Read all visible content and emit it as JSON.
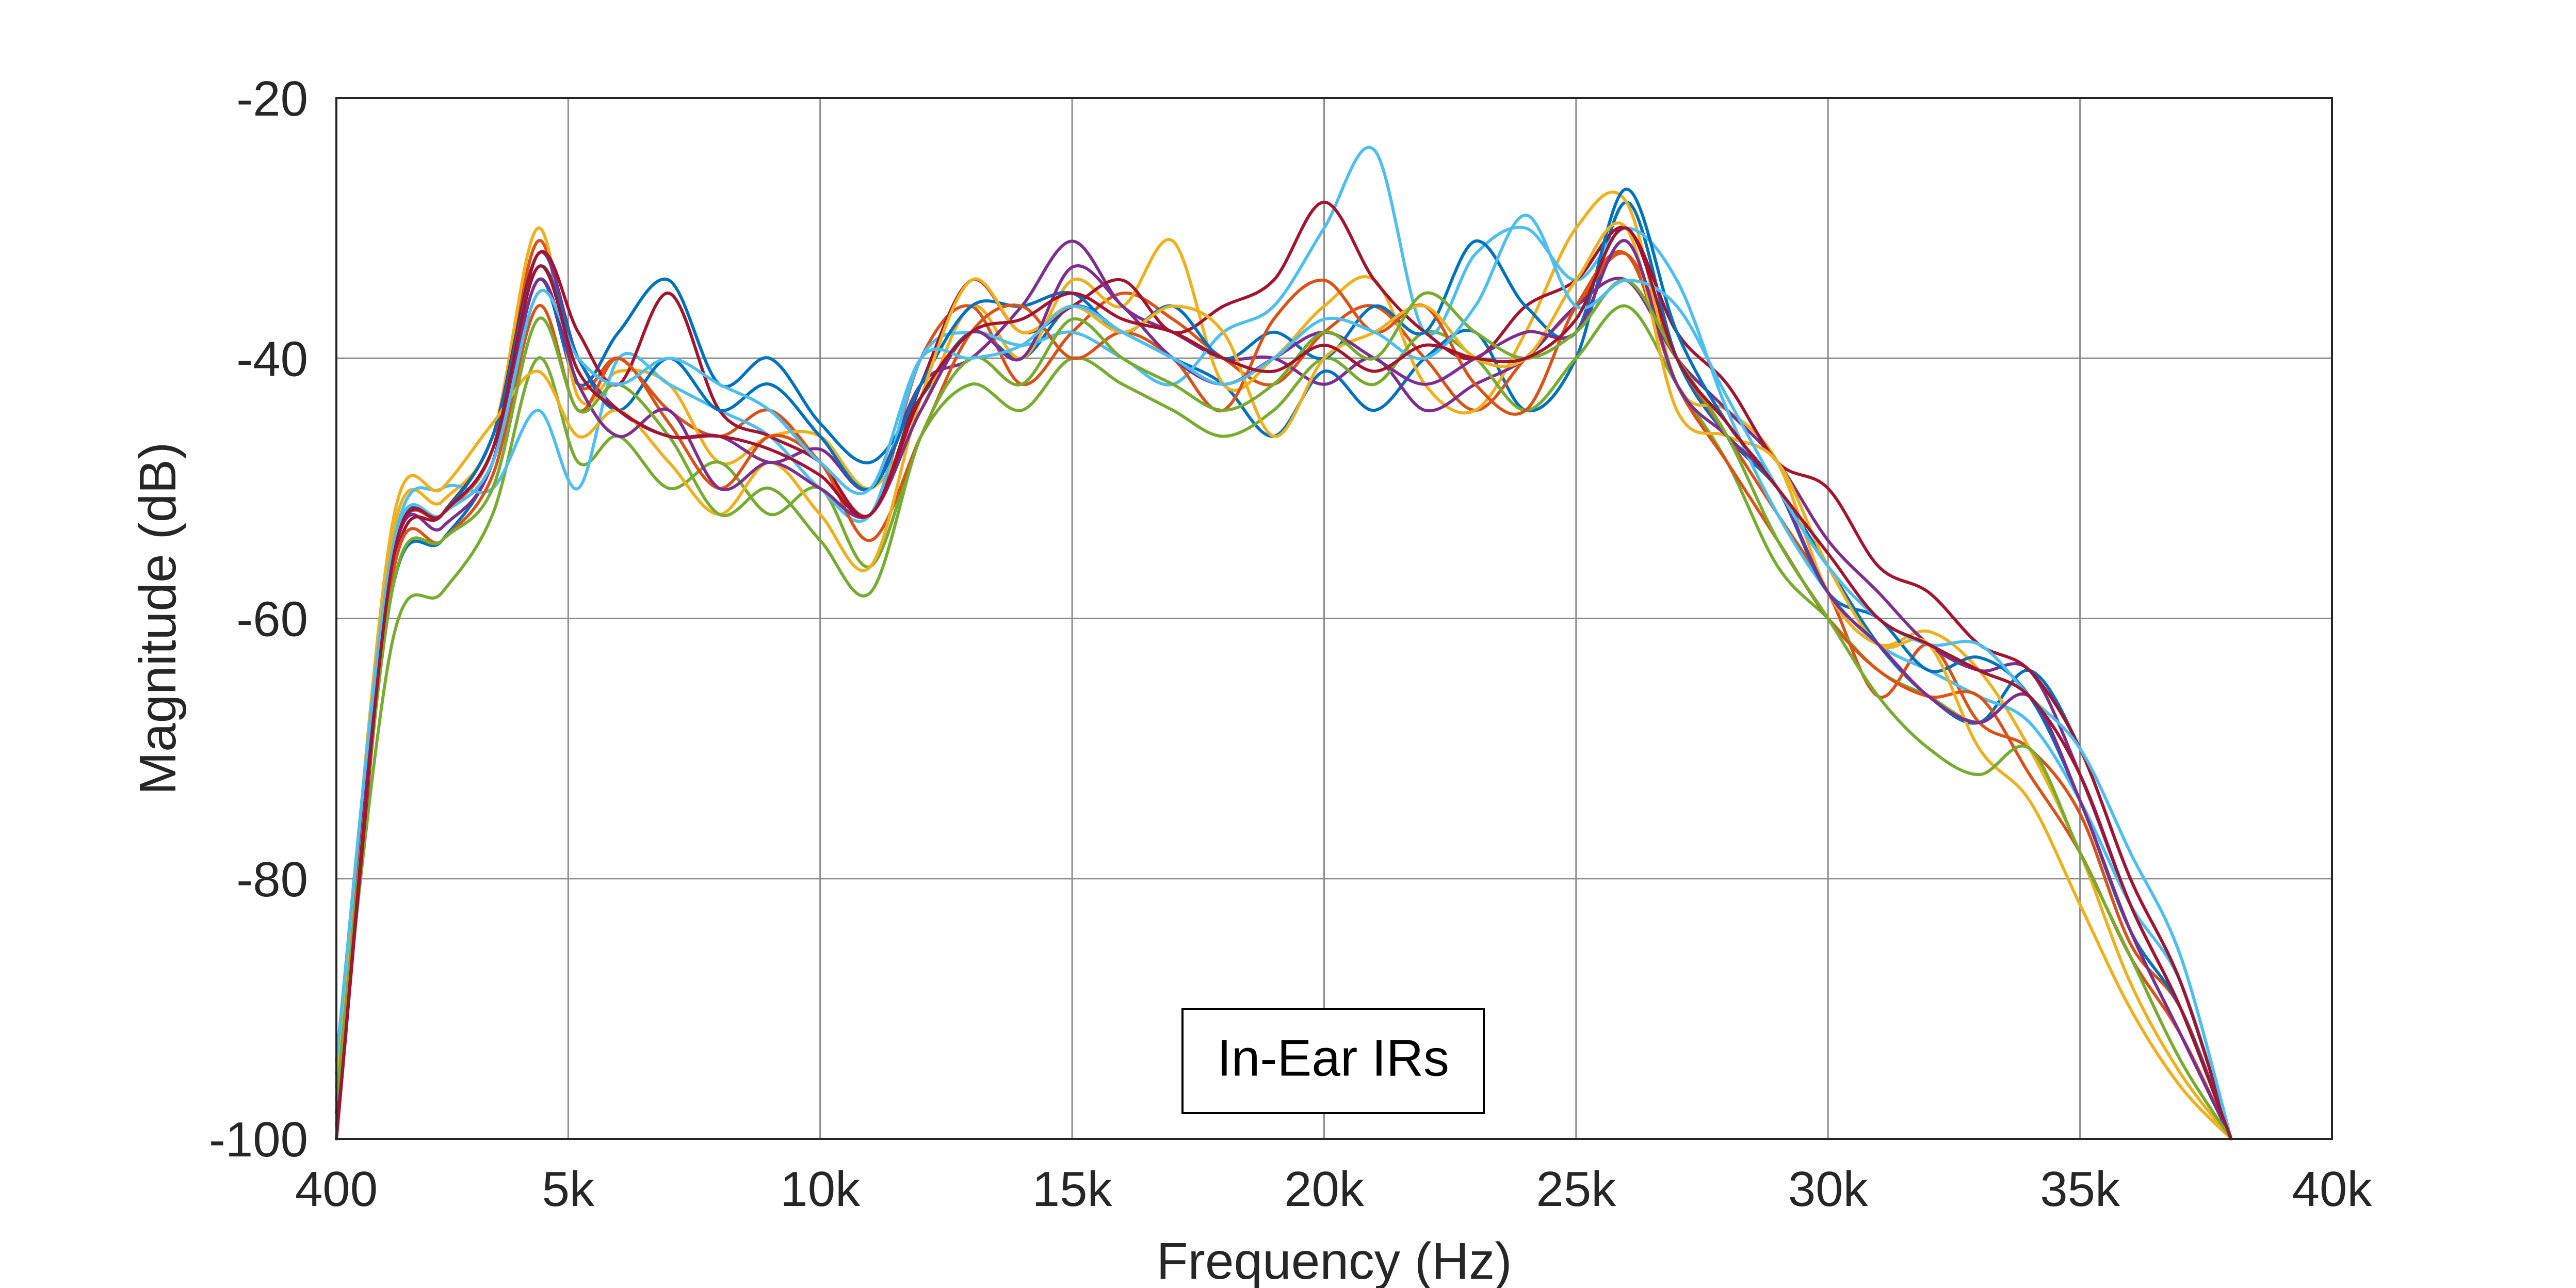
{
  "chart_data": {
    "type": "line",
    "title": "",
    "xlabel": "Frequency (Hz)",
    "ylabel": "Magnitude (dB)",
    "xlim": [
      400,
      40000
    ],
    "ylim": [
      -100,
      -20
    ],
    "x_ticks": [
      400,
      5000,
      10000,
      15000,
      20000,
      25000,
      30000,
      35000,
      40000
    ],
    "x_tick_labels": [
      "400",
      "5k",
      "10k",
      "15k",
      "20k",
      "25k",
      "30k",
      "35k",
      "40k"
    ],
    "y_ticks": [
      -20,
      -40,
      -60,
      -80,
      -100
    ],
    "y_tick_labels": [
      "-20",
      "-40",
      "-60",
      "-80",
      "-100"
    ],
    "grid": true,
    "legend": {
      "text": "In-Ear IRs",
      "placement": "bottom-center"
    },
    "x": [
      400,
      1500,
      2500,
      3500,
      4400,
      5200,
      6000,
      7000,
      8000,
      9000,
      10000,
      11000,
      12000,
      13000,
      14000,
      15000,
      16000,
      17000,
      18000,
      19000,
      20000,
      21000,
      22000,
      23000,
      24000,
      25000,
      26000,
      27000,
      28000,
      29000,
      30000,
      31000,
      32000,
      33000,
      34000,
      35000,
      36000,
      37000,
      38000
    ],
    "series": [
      {
        "color": "#0072BD",
        "values": [
          -95,
          -58,
          -54,
          -48,
          -34,
          -42,
          -38,
          -34,
          -42,
          -40,
          -45,
          -48,
          -43,
          -38,
          -40,
          -36,
          -38,
          -40,
          -42,
          -46,
          -41,
          -44,
          -40,
          -38,
          -44,
          -40,
          -28,
          -40,
          -46,
          -50,
          -56,
          -62,
          -66,
          -68,
          -64,
          -70,
          -80,
          -88,
          -100
        ]
      },
      {
        "color": "#D95319",
        "values": [
          -98,
          -56,
          -52,
          -47,
          -31,
          -42,
          -40,
          -44,
          -46,
          -44,
          -48,
          -52,
          -40,
          -36,
          -42,
          -38,
          -35,
          -37,
          -40,
          -42,
          -38,
          -36,
          -40,
          -44,
          -40,
          -36,
          -32,
          -40,
          -46,
          -52,
          -58,
          -66,
          -62,
          -68,
          -70,
          -75,
          -85,
          -90,
          -100
        ]
      },
      {
        "color": "#EDB120",
        "values": [
          -96,
          -54,
          -51,
          -46,
          -30,
          -43,
          -41,
          -42,
          -48,
          -46,
          -46,
          -50,
          -44,
          -36,
          -40,
          -34,
          -36,
          -31,
          -42,
          -40,
          -36,
          -34,
          -42,
          -44,
          -38,
          -30,
          -28,
          -42,
          -44,
          -48,
          -58,
          -62,
          -61,
          -64,
          -70,
          -78,
          -88,
          -95,
          -100
        ]
      },
      {
        "color": "#7E2F8E",
        "values": [
          -99,
          -56,
          -53,
          -48,
          -32,
          -40,
          -44,
          -46,
          -46,
          -48,
          -47,
          -50,
          -42,
          -40,
          -36,
          -31,
          -36,
          -38,
          -40,
          -40,
          -42,
          -40,
          -44,
          -42,
          -40,
          -36,
          -34,
          -40,
          -44,
          -48,
          -54,
          -58,
          -62,
          -64,
          -64,
          -72,
          -82,
          -90,
          -100
        ]
      },
      {
        "color": "#77AC30",
        "values": [
          -97,
          -62,
          -58,
          -52,
          -40,
          -48,
          -46,
          -50,
          -48,
          -52,
          -50,
          -56,
          -46,
          -42,
          -44,
          -40,
          -42,
          -44,
          -46,
          -44,
          -40,
          -42,
          -38,
          -40,
          -44,
          -40,
          -36,
          -42,
          -48,
          -56,
          -60,
          -64,
          -66,
          -68,
          -66,
          -74,
          -84,
          -92,
          -100
        ]
      },
      {
        "color": "#4DBEEE",
        "values": [
          -95,
          -55,
          -50,
          -50,
          -44,
          -50,
          -40,
          -42,
          -44,
          -46,
          -50,
          -52,
          -40,
          -38,
          -39,
          -38,
          -40,
          -42,
          -38,
          -36,
          -30,
          -24,
          -38,
          -32,
          -30,
          -34,
          -30,
          -34,
          -44,
          -52,
          -58,
          -62,
          -64,
          -66,
          -68,
          -74,
          -82,
          -88,
          -100
        ]
      },
      {
        "color": "#A2142F",
        "values": [
          -100,
          -57,
          -52,
          -46,
          -32,
          -38,
          -42,
          -35,
          -44,
          -46,
          -48,
          -52,
          -42,
          -34,
          -38,
          -36,
          -34,
          -38,
          -36,
          -34,
          -28,
          -34,
          -38,
          -40,
          -36,
          -34,
          -30,
          -38,
          -42,
          -48,
          -50,
          -56,
          -58,
          -62,
          -64,
          -70,
          -80,
          -88,
          -100
        ]
      },
      {
        "color": "#0072BD",
        "values": [
          -94,
          -55,
          -52,
          -46,
          -33,
          -40,
          -44,
          -40,
          -44,
          -42,
          -46,
          -50,
          -42,
          -36,
          -36,
          -35,
          -38,
          -36,
          -40,
          -38,
          -40,
          -36,
          -38,
          -31,
          -36,
          -38,
          -27,
          -38,
          -45,
          -50,
          -58,
          -60,
          -64,
          -63,
          -66,
          -74,
          -84,
          -90,
          -100
        ]
      },
      {
        "color": "#D95319",
        "values": [
          -99,
          -57,
          -54,
          -49,
          -36,
          -44,
          -40,
          -45,
          -50,
          -46,
          -48,
          -54,
          -46,
          -38,
          -36,
          -40,
          -38,
          -40,
          -44,
          -37,
          -34,
          -38,
          -36,
          -42,
          -44,
          -36,
          -32,
          -42,
          -48,
          -54,
          -60,
          -64,
          -66,
          -66,
          -72,
          -78,
          -86,
          -92,
          -100
        ]
      },
      {
        "color": "#EDB120",
        "values": [
          -96,
          -53,
          -50,
          -45,
          -41,
          -46,
          -44,
          -48,
          -52,
          -48,
          -52,
          -56,
          -43,
          -34,
          -38,
          -36,
          -38,
          -36,
          -38,
          -46,
          -40,
          -38,
          -36,
          -40,
          -40,
          -34,
          -30,
          -44,
          -46,
          -48,
          -56,
          -62,
          -62,
          -70,
          -74,
          -82,
          -90,
          -96,
          -100
        ]
      },
      {
        "color": "#7E2F8E",
        "values": [
          -98,
          -56,
          -52,
          -48,
          -34,
          -42,
          -46,
          -44,
          -50,
          -48,
          -50,
          -52,
          -44,
          -38,
          -40,
          -33,
          -36,
          -40,
          -42,
          -40,
          -38,
          -40,
          -42,
          -40,
          -38,
          -38,
          -31,
          -42,
          -46,
          -50,
          -58,
          -62,
          -66,
          -68,
          -66,
          -74,
          -84,
          -92,
          -100
        ]
      },
      {
        "color": "#77AC30",
        "values": [
          -97,
          -58,
          -54,
          -50,
          -37,
          -44,
          -42,
          -46,
          -52,
          -50,
          -54,
          -58,
          -46,
          -40,
          -42,
          -37,
          -40,
          -42,
          -44,
          -42,
          -38,
          -40,
          -35,
          -38,
          -40,
          -38,
          -34,
          -40,
          -46,
          -54,
          -60,
          -66,
          -70,
          -72,
          -70,
          -78,
          -86,
          -94,
          -100
        ]
      },
      {
        "color": "#4DBEEE",
        "values": [
          -94,
          -55,
          -52,
          -48,
          -35,
          -40,
          -42,
          -40,
          -42,
          -44,
          -48,
          -50,
          -40,
          -40,
          -39,
          -36,
          -38,
          -40,
          -42,
          -40,
          -37,
          -38,
          -40,
          -36,
          -29,
          -36,
          -34,
          -36,
          -43,
          -50,
          -56,
          -60,
          -62,
          -62,
          -66,
          -70,
          -78,
          -86,
          -100
        ]
      },
      {
        "color": "#A2142F",
        "values": [
          -100,
          -56,
          -52,
          -47,
          -33,
          -41,
          -44,
          -46,
          -46,
          -47,
          -49,
          -52,
          -43,
          -38,
          -37,
          -35,
          -37,
          -38,
          -40,
          -41,
          -39,
          -41,
          -39,
          -40,
          -40,
          -37,
          -30,
          -40,
          -45,
          -50,
          -55,
          -60,
          -62,
          -64,
          -66,
          -72,
          -82,
          -90,
          -100
        ]
      }
    ]
  }
}
